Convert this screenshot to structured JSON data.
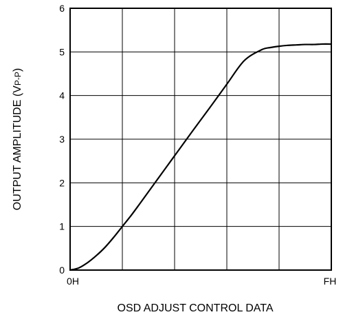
{
  "chart_data": {
    "type": "line",
    "title": "",
    "xlabel": "OSD ADJUST CONTROL DATA",
    "ylabel": "OUTPUT AMPLITUDE (VP-P)",
    "ylabel_main": "OUTPUT AMPLITUDE (V",
    "ylabel_sub": "P-P",
    "ylabel_close": ")",
    "x_tick_labels": [
      "0H",
      "FH"
    ],
    "x_range": [
      0,
      15
    ],
    "y_ticks": [
      "0",
      "1",
      "2",
      "3",
      "4",
      "5",
      "6"
    ],
    "ylim": [
      0,
      6
    ],
    "grid": true,
    "series": [
      {
        "x": [
          0,
          0.5,
          1,
          1.5,
          2,
          2.5,
          3,
          3.5,
          4,
          5,
          6,
          7,
          8,
          9,
          10,
          11,
          11.5,
          12,
          12.5,
          13,
          13.5,
          14,
          14.5,
          15
        ],
        "values": [
          0,
          0.05,
          0.17,
          0.33,
          0.52,
          0.75,
          1.0,
          1.25,
          1.52,
          2.07,
          2.62,
          3.17,
          3.71,
          4.26,
          4.8,
          5.05,
          5.1,
          5.13,
          5.15,
          5.16,
          5.17,
          5.17,
          5.18,
          5.18
        ]
      }
    ]
  }
}
